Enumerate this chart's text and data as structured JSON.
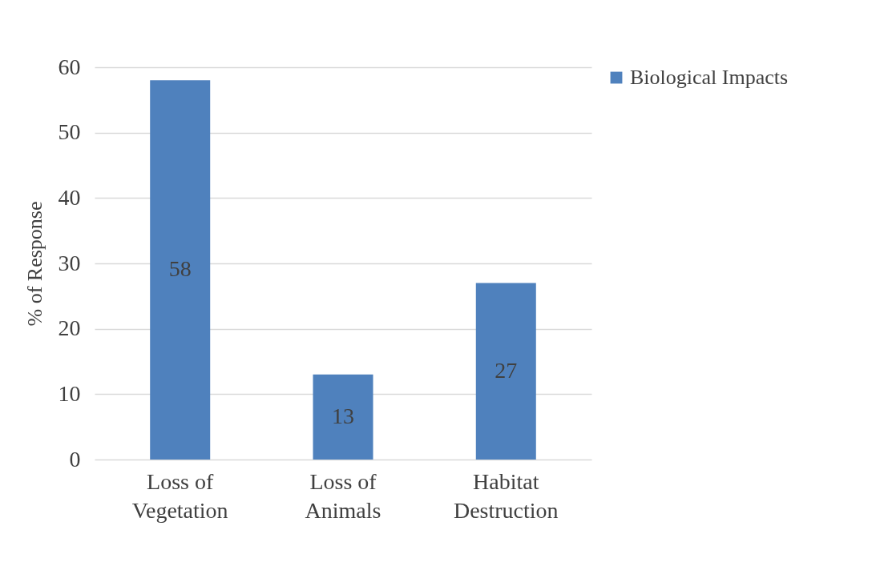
{
  "chart_data": {
    "type": "bar",
    "categories": [
      "Loss of\nVegetation",
      "Loss of\nAnimals",
      "Habitat\nDestruction"
    ],
    "series": [
      {
        "name": "Biological Impacts",
        "color": "#4f81bd",
        "values": [
          58,
          13,
          27
        ]
      }
    ],
    "ylabel": "% of Response",
    "ylim": [
      0,
      60
    ],
    "yticks": [
      0,
      10,
      20,
      30,
      40,
      50,
      60
    ],
    "grid": "y",
    "legend": "right",
    "data_labels": true
  }
}
